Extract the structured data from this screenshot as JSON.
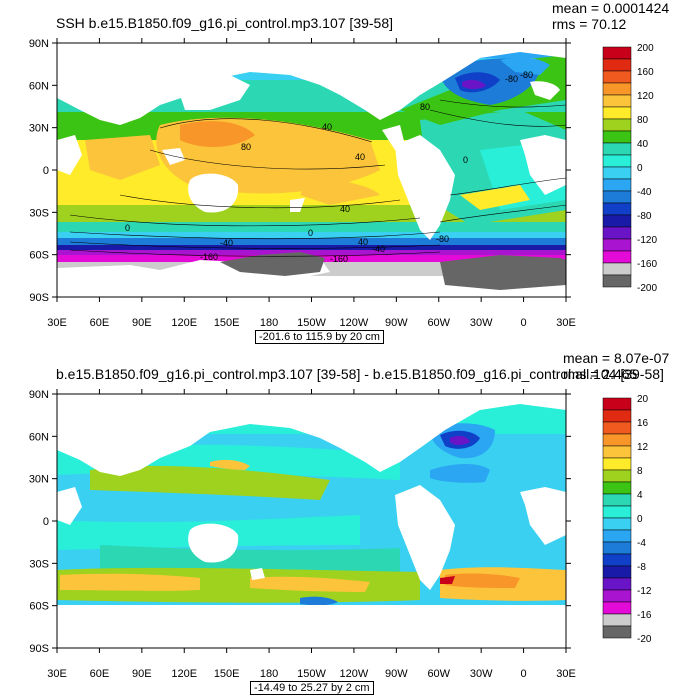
{
  "panels": [
    {
      "title": "SSH b.e15.B1850.f09_g16.pi_control.mp3.107 [39-58]",
      "mean_label": "mean = 0.0001424",
      "rms_label": "rms = 70.12",
      "range_label": "-201.6 to 115.9 by 20 cm",
      "lat_labels": [
        "90N",
        "60N",
        "30N",
        "0",
        "30S",
        "60S",
        "90S"
      ],
      "lon_labels": [
        "30E",
        "60E",
        "90E",
        "120E",
        "150E",
        "180",
        "150W",
        "120W",
        "90W",
        "60W",
        "30W",
        "0",
        "30E"
      ],
      "colorbar": {
        "labels": [
          "200",
          "160",
          "120",
          "80",
          "40",
          "0",
          "-40",
          "-80",
          "-120",
          "-160",
          "-200"
        ],
        "colors": [
          "#c8001a",
          "#e02a12",
          "#f05a1e",
          "#f8962a",
          "#fcc43a",
          "#ffeb2a",
          "#9ed21e",
          "#3cc414",
          "#2cd7b4",
          "#29eed8",
          "#3ad0f2",
          "#2aa6f2",
          "#1c7cd8",
          "#1040c8",
          "#1a1aa8",
          "#6a14c8",
          "#a814d0",
          "#e40ad8",
          "#cccccc",
          "#666666"
        ]
      },
      "contour_labels": [
        "80",
        "40",
        "0",
        "-40",
        "-160",
        "40",
        "0",
        "80",
        "-80",
        "40",
        "0",
        "-80",
        "-160",
        "40",
        "-80",
        "-40"
      ]
    },
    {
      "title": "b.e15.B1850.f09_g16.pi_control.mp3.107 [39-58] - b.e15.B1850.f09_g16.pi_control.all.104 [39-58]",
      "mean_label": "mean = 8.07e-07",
      "rms_label": "rms = 2.465",
      "range_label": "-14.49 to 25.27 by 2 cm",
      "lat_labels": [
        "90N",
        "60N",
        "30N",
        "0",
        "30S",
        "60S",
        "90S"
      ],
      "lon_labels": [
        "30E",
        "60E",
        "90E",
        "120E",
        "150E",
        "180",
        "150W",
        "120W",
        "90W",
        "60W",
        "30W",
        "0",
        "30E"
      ],
      "colorbar": {
        "labels": [
          "20",
          "16",
          "12",
          "8",
          "4",
          "0",
          "-4",
          "-8",
          "-12",
          "-16",
          "-20"
        ],
        "colors": [
          "#c8001a",
          "#e02a12",
          "#f05a1e",
          "#f8962a",
          "#fcc43a",
          "#ffeb2a",
          "#9ed21e",
          "#3cc414",
          "#2cd7b4",
          "#29eed8",
          "#3ad0f2",
          "#2aa6f2",
          "#1c7cd8",
          "#1040c8",
          "#1a1aa8",
          "#6a14c8",
          "#a814d0",
          "#e40ad8",
          "#cccccc",
          "#666666"
        ]
      }
    }
  ]
}
